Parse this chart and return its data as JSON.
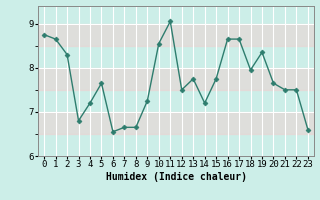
{
  "x": [
    0,
    1,
    2,
    3,
    4,
    5,
    6,
    7,
    8,
    9,
    10,
    11,
    12,
    13,
    14,
    15,
    16,
    17,
    18,
    19,
    20,
    21,
    22,
    23
  ],
  "y": [
    8.75,
    8.65,
    8.3,
    6.8,
    7.2,
    7.65,
    6.55,
    6.65,
    6.65,
    7.25,
    8.55,
    9.05,
    7.5,
    7.75,
    7.2,
    7.75,
    8.65,
    8.65,
    7.95,
    8.35,
    7.65,
    7.5,
    7.5,
    6.6
  ],
  "line_color": "#2e7d6e",
  "marker": "D",
  "markersize": 2.5,
  "linewidth": 1.0,
  "bg_color": "#cceee8",
  "grid_color": "#ffffff",
  "grid_minor_color": "#e8c8c8",
  "xlabel": "Humidex (Indice chaleur)",
  "xlim": [
    -0.5,
    23.5
  ],
  "ylim": [
    6.0,
    9.4
  ],
  "yticks": [
    6,
    7,
    8,
    9
  ],
  "xticks": [
    0,
    1,
    2,
    3,
    4,
    5,
    6,
    7,
    8,
    9,
    10,
    11,
    12,
    13,
    14,
    15,
    16,
    17,
    18,
    19,
    20,
    21,
    22,
    23
  ],
  "xlabel_fontsize": 7,
  "tick_fontsize": 6.5
}
